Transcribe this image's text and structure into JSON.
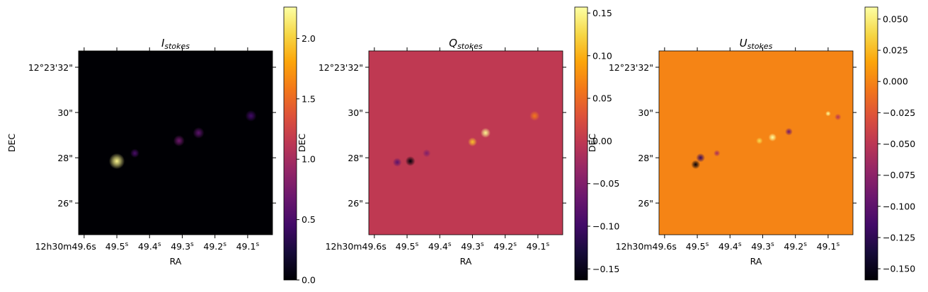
{
  "chart_data": [
    {
      "type": "heatmap",
      "title_main": "I",
      "title_sub": "stokes",
      "xlabel": "RA",
      "ylabel": "DEC",
      "x_ticks": [
        "12h30m49.6s",
        "49.5s",
        "49.4s",
        "49.3s",
        "49.2s",
        "49.1s"
      ],
      "x_tick_parts": [
        [
          "12",
          "h",
          "30",
          "m",
          "49.6",
          "s"
        ],
        [
          "49.5",
          "s"
        ],
        [
          "49.4",
          "s"
        ],
        [
          "49.3",
          "s"
        ],
        [
          "49.2",
          "s"
        ],
        [
          "49.1",
          "s"
        ]
      ],
      "y_ticks": [
        "12°23'32\"",
        "30\"",
        "28\"",
        "26\""
      ],
      "colorbar": {
        "min": 0.0,
        "max": 2.26,
        "ticks": [
          "0.0",
          "0.5",
          "1.0",
          "1.5",
          "2.0"
        ],
        "tick_values": [
          0,
          0.5,
          1.0,
          1.5,
          2.0
        ],
        "cmap": "inferno"
      },
      "background_value": 0.0,
      "sources": [
        {
          "ra": 49.5,
          "dec": 27.85,
          "value": 2.2,
          "size": 0.35
        },
        {
          "ra": 49.445,
          "dec": 28.2,
          "value": 0.5,
          "size": 0.2
        },
        {
          "ra": 49.31,
          "dec": 28.75,
          "value": 0.7,
          "size": 0.25
        },
        {
          "ra": 49.25,
          "dec": 29.1,
          "value": 0.6,
          "size": 0.25
        },
        {
          "ra": 49.09,
          "dec": 29.85,
          "value": 0.45,
          "size": 0.25
        }
      ]
    },
    {
      "type": "heatmap",
      "title_main": "Q",
      "title_sub": "stokes",
      "xlabel": "RA",
      "ylabel": "DEC",
      "x_ticks": [
        "12h30m49.6s",
        "49.5s",
        "49.4s",
        "49.3s",
        "49.2s",
        "49.1s"
      ],
      "x_tick_parts": [
        [
          "12",
          "h",
          "30",
          "m",
          "49.6",
          "s"
        ],
        [
          "49.5",
          "s"
        ],
        [
          "49.4",
          "s"
        ],
        [
          "49.3",
          "s"
        ],
        [
          "49.2",
          "s"
        ],
        [
          "49.1",
          "s"
        ]
      ],
      "y_ticks": [
        "12°23'32\"",
        "30\"",
        "28\"",
        "26\""
      ],
      "colorbar": {
        "min": -0.163,
        "max": 0.157,
        "ticks": [
          "−0.15",
          "−0.10",
          "−0.05",
          "0.00",
          "0.05",
          "0.10",
          "0.15"
        ],
        "tick_values": [
          -0.15,
          -0.1,
          -0.05,
          0.0,
          0.05,
          0.1,
          0.15
        ],
        "cmap": "inferno"
      },
      "background_value": 0.0,
      "sources": [
        {
          "ra": 49.49,
          "dec": 27.85,
          "value": -0.16,
          "size": 0.22
        },
        {
          "ra": 49.53,
          "dec": 27.8,
          "value": -0.08,
          "size": 0.2
        },
        {
          "ra": 49.44,
          "dec": 28.2,
          "value": -0.05,
          "size": 0.18
        },
        {
          "ra": 49.26,
          "dec": 29.1,
          "value": 0.15,
          "size": 0.22
        },
        {
          "ra": 49.3,
          "dec": 28.7,
          "value": 0.11,
          "size": 0.2
        },
        {
          "ra": 49.11,
          "dec": 29.85,
          "value": 0.06,
          "size": 0.22
        }
      ]
    },
    {
      "type": "heatmap",
      "title_main": "U",
      "title_sub": "stokes",
      "xlabel": "RA",
      "ylabel": "DEC",
      "x_ticks": [
        "12h30m49.6s",
        "49.5s",
        "49.4s",
        "49.3s",
        "49.2s",
        "49.1s"
      ],
      "x_tick_parts": [
        [
          "12",
          "h",
          "30",
          "m",
          "49.6",
          "s"
        ],
        [
          "49.5",
          "s"
        ],
        [
          "49.4",
          "s"
        ],
        [
          "49.3",
          "s"
        ],
        [
          "49.2",
          "s"
        ],
        [
          "49.1",
          "s"
        ]
      ],
      "y_ticks": [
        "12°23'32\"",
        "30\"",
        "28\"",
        "26\""
      ],
      "colorbar": {
        "min": -0.159,
        "max": 0.0596,
        "ticks": [
          "−0.150",
          "−0.125",
          "−0.100",
          "−0.075",
          "−0.050",
          "−0.025",
          "0.000",
          "0.025",
          "0.050"
        ],
        "tick_values": [
          -0.15,
          -0.125,
          -0.1,
          -0.075,
          -0.05,
          -0.025,
          0.0,
          0.025,
          0.05
        ],
        "cmap": "inferno"
      },
      "background_value": 0.0,
      "sources": [
        {
          "ra": 49.505,
          "dec": 27.7,
          "value": -0.155,
          "size": 0.2
        },
        {
          "ra": 49.49,
          "dec": 28.0,
          "value": -0.12,
          "size": 0.2
        },
        {
          "ra": 49.44,
          "dec": 28.2,
          "value": -0.06,
          "size": 0.15
        },
        {
          "ra": 49.27,
          "dec": 28.9,
          "value": 0.06,
          "size": 0.18
        },
        {
          "ra": 49.31,
          "dec": 28.75,
          "value": 0.04,
          "size": 0.15
        },
        {
          "ra": 49.22,
          "dec": 29.15,
          "value": -0.09,
          "size": 0.17
        },
        {
          "ra": 49.1,
          "dec": 29.95,
          "value": 0.058,
          "size": 0.12
        },
        {
          "ra": 49.07,
          "dec": 29.8,
          "value": -0.05,
          "size": 0.15
        }
      ]
    }
  ]
}
